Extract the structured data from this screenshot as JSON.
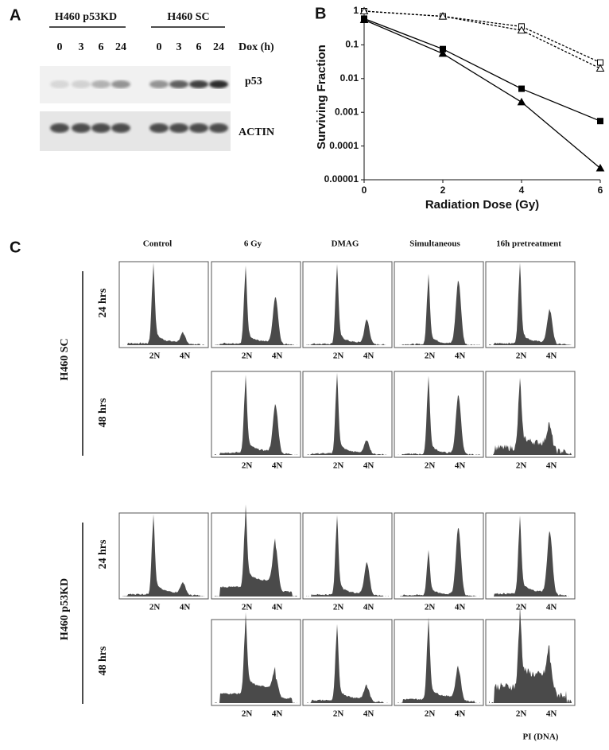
{
  "panel_a": {
    "letter": "A",
    "groups": [
      "H460 p53KD",
      "H460 SC"
    ],
    "time_label": "Dox (h)",
    "lanes": [
      "0",
      "3",
      "6",
      "24"
    ],
    "bands": [
      "p53",
      "ACTIN"
    ]
  },
  "panel_b_letter": "B",
  "chart_data": {
    "type": "line",
    "x_label": "Radiation Dose (Gy)",
    "y_label": "Surviving Fraction",
    "x": [
      0,
      2,
      4,
      6
    ],
    "xlim": [
      0,
      6
    ],
    "xticks": [
      0,
      2,
      4,
      6
    ],
    "ylim": [
      1e-05,
      1
    ],
    "log_y": true,
    "yticks": [
      {
        "value": 1e-05,
        "label": "0.00001"
      },
      0.0001,
      0.001,
      0.01,
      0.1,
      1
    ],
    "series": [
      {
        "color": "#000000",
        "marker": "square",
        "filled": true,
        "dashed": false,
        "values": [
          0.6,
          0.075,
          0.005,
          0.00055
        ]
      },
      {
        "color": "#000000",
        "marker": "triangle",
        "filled": true,
        "dashed": false,
        "values": [
          0.55,
          0.055,
          0.002,
          2.2e-05
        ]
      },
      {
        "color": "#000000",
        "marker": "square",
        "filled": false,
        "dashed": true,
        "values": [
          1,
          0.7,
          0.35,
          0.03
        ]
      },
      {
        "color": "#000000",
        "marker": "triangle",
        "filled": false,
        "dashed": true,
        "values": [
          1,
          0.7,
          0.27,
          0.02
        ]
      }
    ]
  },
  "panel_c": {
    "letter": "C",
    "columns": [
      "Control",
      "6 Gy",
      "DMAG",
      "Simultaneous",
      "16h pretreatment"
    ],
    "groups": [
      {
        "name": "H460 SC",
        "rows": [
          "24 hrs",
          "48 hrs"
        ]
      },
      {
        "name": "H460 p53KD",
        "rows": [
          "24 hrs",
          "48 hrs"
        ]
      }
    ],
    "markers": [
      "2N",
      "4N"
    ],
    "x_label": "PI (DNA)"
  }
}
